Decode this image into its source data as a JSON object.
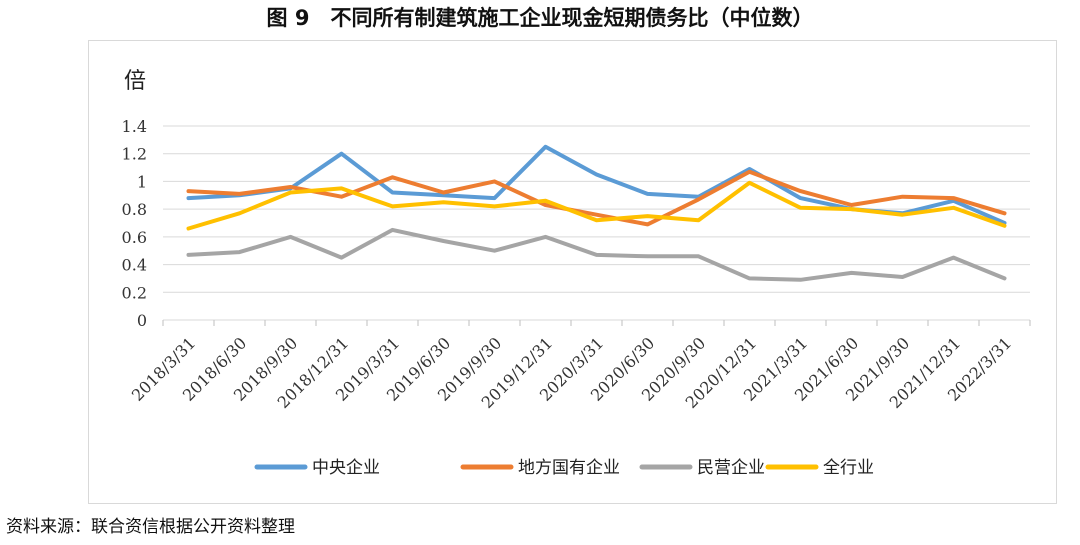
{
  "title": "图 9　不同所有制建筑施工企业现金短期债务比（中位数）",
  "source": "资料来源：联合资信根据公开资料整理",
  "chart_data": {
    "type": "line",
    "ylabel": "倍",
    "ylim": [
      0,
      1.4
    ],
    "yticks": [
      "0",
      "0.2",
      "0.4",
      "0.6",
      "0.8",
      "1",
      "1.2",
      "1.4"
    ],
    "grid": true,
    "legend_position": "bottom",
    "categories": [
      "2018/3/31",
      "2018/6/30",
      "2018/9/30",
      "2018/12/31",
      "2019/3/31",
      "2019/6/30",
      "2019/9/30",
      "2019/12/31",
      "2020/3/31",
      "2020/6/30",
      "2020/9/30",
      "2020/12/31",
      "2021/3/31",
      "2021/6/30",
      "2021/9/30",
      "2021/12/31",
      "2022/3/31"
    ],
    "series": [
      {
        "name": "中央企业",
        "color": "#5B9BD5",
        "values": [
          0.88,
          0.9,
          0.95,
          1.2,
          0.92,
          0.9,
          0.88,
          1.25,
          1.05,
          0.91,
          0.89,
          1.09,
          0.88,
          0.8,
          0.77,
          0.86,
          0.7
        ]
      },
      {
        "name": "地方国有企业",
        "color": "#ED7D31",
        "values": [
          0.93,
          0.91,
          0.96,
          0.89,
          1.03,
          0.92,
          1.0,
          0.83,
          0.76,
          0.69,
          0.87,
          1.07,
          0.93,
          0.83,
          0.89,
          0.88,
          0.77
        ]
      },
      {
        "name": "民营企业",
        "color": "#A5A5A5",
        "values": [
          0.47,
          0.49,
          0.6,
          0.45,
          0.65,
          0.57,
          0.5,
          0.6,
          0.47,
          0.46,
          0.46,
          0.3,
          0.29,
          0.34,
          0.31,
          0.45,
          0.3
        ]
      },
      {
        "name": "全行业",
        "color": "#FFC000",
        "values": [
          0.66,
          0.77,
          0.92,
          0.95,
          0.82,
          0.85,
          0.82,
          0.86,
          0.72,
          0.75,
          0.72,
          0.99,
          0.81,
          0.8,
          0.76,
          0.81,
          0.68
        ]
      }
    ]
  }
}
